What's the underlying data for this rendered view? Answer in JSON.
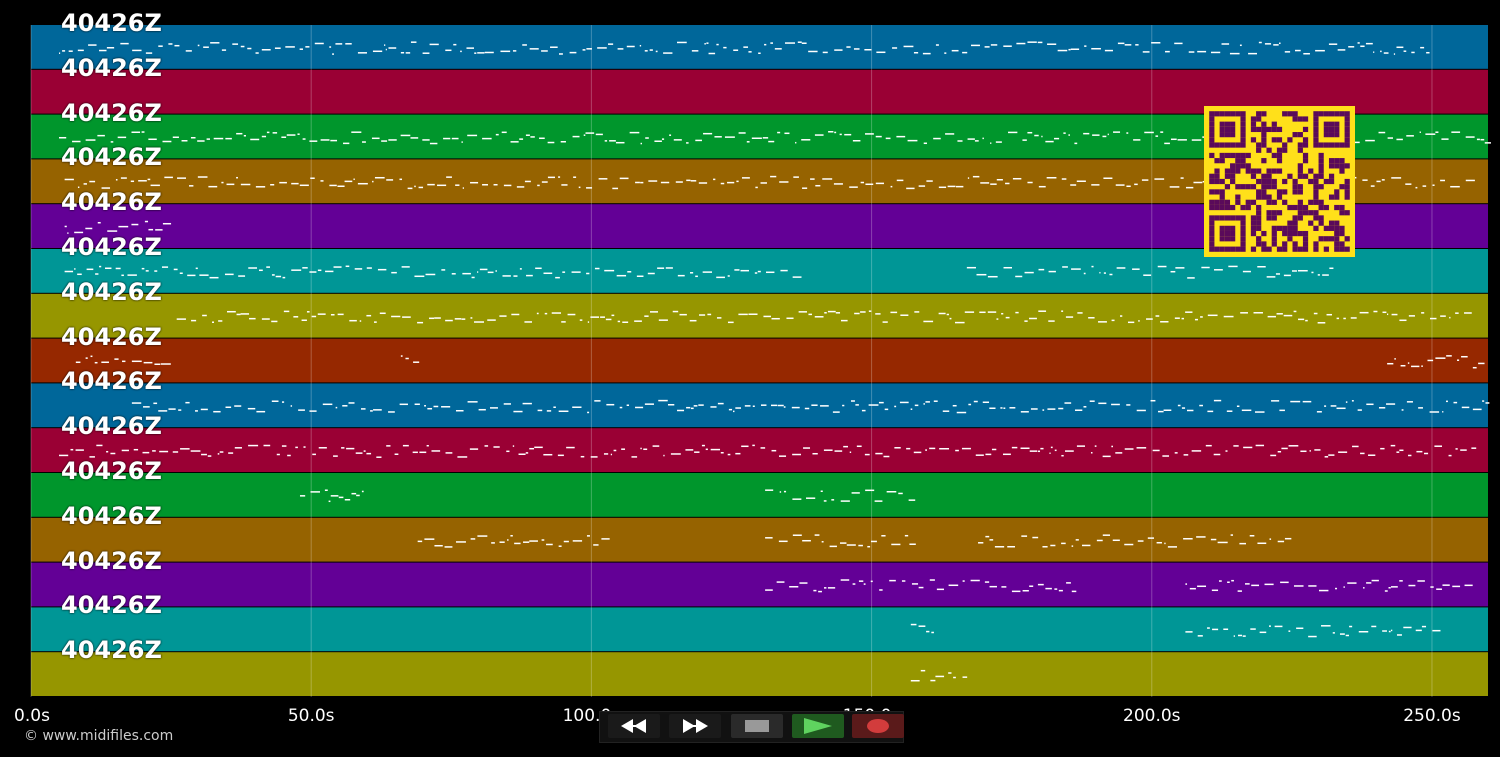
{
  "tracks": [
    {
      "label": "40426Z",
      "color": "#00679a"
    },
    {
      "label": "40426Z",
      "color": "#9a0034"
    },
    {
      "label": "40426Z",
      "color": "#00962c"
    },
    {
      "label": "40426Z",
      "color": "#966300"
    },
    {
      "label": "40426Z",
      "color": "#630096"
    },
    {
      "label": "40426Z",
      "color": "#009696"
    },
    {
      "label": "40426Z",
      "color": "#969600"
    },
    {
      "label": "40426Z",
      "color": "#962800"
    },
    {
      "label": "40426Z",
      "color": "#00679a"
    },
    {
      "label": "40426Z",
      "color": "#9a0034"
    },
    {
      "label": "40426Z",
      "color": "#00962c"
    },
    {
      "label": "40426Z",
      "color": "#966300"
    },
    {
      "label": "40426Z",
      "color": "#630096"
    },
    {
      "label": "40426Z",
      "color": "#009696"
    },
    {
      "label": "40426Z",
      "color": "#969600"
    }
  ],
  "time_axis": {
    "ticks": [
      "0.0s",
      "50.0s",
      "100.0s",
      "150.0s",
      "200.0s",
      "250.0s"
    ],
    "duration_s": 260
  },
  "copyright": "© www.midifiles.com",
  "transport": {
    "rewind_icon": "rewind-icon",
    "forward_icon": "fast-forward-icon",
    "stop_icon": "stop-icon",
    "play_icon": "play-icon",
    "record_icon": "record-icon"
  },
  "qr_code": {
    "fg": "#5a0a5a",
    "bg": "#ffe01a"
  }
}
